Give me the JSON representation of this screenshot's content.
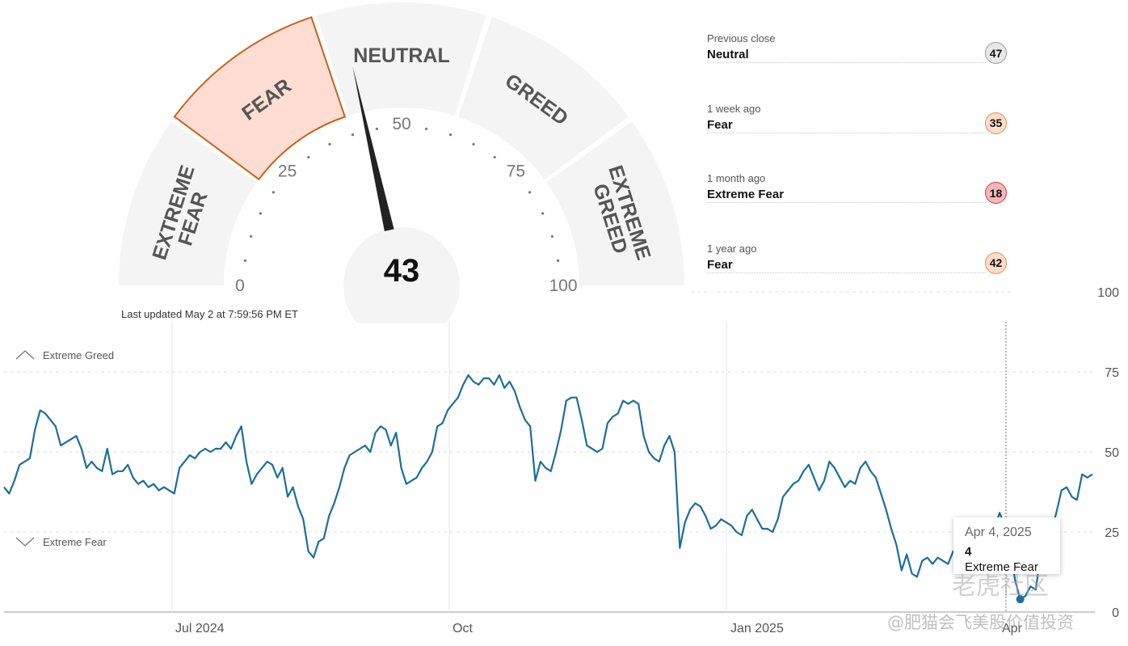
{
  "gauge": {
    "value": 43,
    "segments": [
      "EXTREME FEAR",
      "FEAR",
      "NEUTRAL",
      "GREED",
      "EXTREME GREED"
    ],
    "active_segment": "FEAR",
    "scale_labels": [
      "0",
      "25",
      "50",
      "75",
      "100"
    ],
    "active_color": "#ffddd2",
    "active_stroke": "#c8631c",
    "inactive_color": "#f4f4f4",
    "needle_color": "#222222"
  },
  "updated_text": "Last updated May 2 at 7:59:56 PM ET",
  "comparisons": [
    {
      "label": "Previous close",
      "rating": "Neutral",
      "value": "47",
      "color": "#e8e8e8",
      "border": "#9a9a9a"
    },
    {
      "label": "1 week ago",
      "rating": "Fear",
      "value": "35",
      "color": "#ffdccb",
      "border": "#e98a53"
    },
    {
      "label": "1 month ago",
      "rating": "Extreme Fear",
      "value": "18",
      "color": "#f8b7b7",
      "border": "#cf3d3d"
    },
    {
      "label": "1 year ago",
      "rating": "Fear",
      "value": "42",
      "color": "#ffdccb",
      "border": "#e98a53"
    }
  ],
  "chart_data": {
    "type": "line",
    "x_labels": [
      "Jul 2024",
      "Oct",
      "Jan 2025",
      "Apr"
    ],
    "y_ticks": [
      "0",
      "25",
      "50",
      "75",
      "100"
    ],
    "ylim": [
      0,
      100
    ],
    "bands": {
      "upper": "Extreme Greed",
      "lower": "Extreme Fear"
    },
    "line_color": "#1a6f9c",
    "series": [
      {
        "values": [
          39,
          37,
          41,
          46,
          47,
          48,
          57,
          63,
          62,
          60,
          58,
          52,
          53,
          54,
          55,
          51,
          45,
          47,
          45,
          44,
          51,
          43,
          44,
          44,
          46,
          42,
          40,
          41,
          39,
          40,
          38,
          39,
          38,
          37,
          45,
          47,
          49,
          48,
          50,
          51,
          50,
          51,
          51,
          53,
          51,
          55,
          58,
          47,
          40,
          43,
          45,
          47,
          46,
          42,
          45,
          36,
          39,
          33,
          29,
          19,
          17,
          22,
          23,
          30,
          34,
          39,
          45,
          49,
          50,
          51,
          52,
          50,
          56,
          58,
          57,
          52,
          56,
          45,
          40,
          41,
          42,
          45,
          47,
          50,
          58,
          59,
          63,
          65,
          67,
          71,
          74,
          72,
          71,
          73,
          73,
          71,
          74,
          70,
          72,
          69,
          64,
          60,
          58,
          41,
          47,
          45,
          44,
          50,
          57,
          66,
          67,
          67,
          60,
          52,
          51,
          50,
          51,
          59,
          61,
          62,
          66,
          65,
          66,
          65,
          55,
          50,
          48,
          47,
          52,
          55,
          50,
          20,
          28,
          32,
          34,
          33,
          30,
          26,
          27,
          29,
          28,
          27,
          25,
          24,
          30,
          32,
          29,
          26,
          26,
          25,
          29,
          36,
          38,
          40,
          41,
          44,
          46,
          42,
          38,
          41,
          47,
          45,
          42,
          39,
          41,
          40,
          45,
          47,
          44,
          42,
          37,
          32,
          26,
          21,
          13,
          18,
          12,
          11,
          16,
          17,
          15,
          17,
          16,
          15,
          19,
          19,
          17,
          21,
          22,
          21,
          23,
          28,
          26,
          31,
          27,
          20,
          10,
          4,
          5,
          8,
          7,
          18,
          22,
          25,
          31,
          38,
          39,
          36,
          35,
          43,
          42,
          43
        ]
      }
    ],
    "tooltip": {
      "date": "Apr 4, 2025",
      "value": "4",
      "rating": "Extreme Fear"
    }
  },
  "watermarks": [
    "老虎社区",
    "@肥猫会飞美股价值投资"
  ]
}
